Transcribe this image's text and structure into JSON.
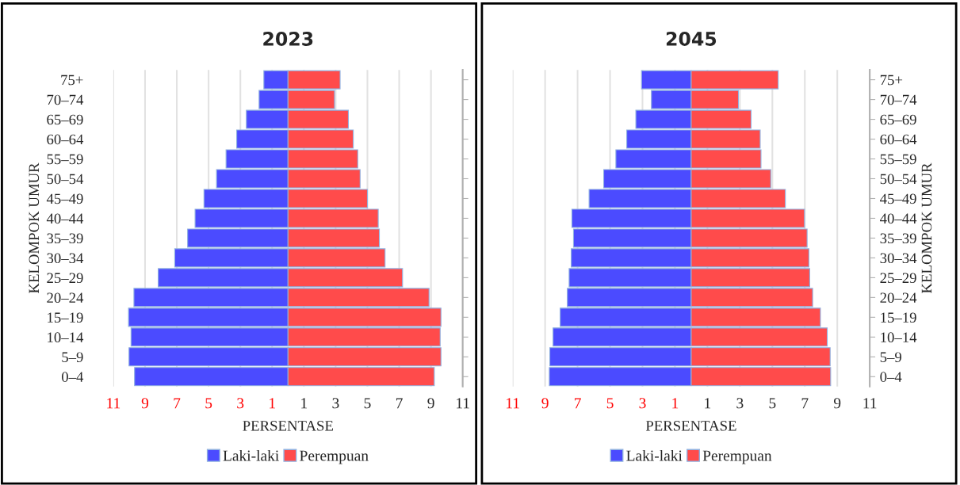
{
  "chart_data": [
    {
      "type": "bar",
      "stacked": true,
      "title": "2023",
      "xlabel": "PERSENTASE",
      "ylabel": "KELOMPOK UMUR",
      "orientation": "horizontal",
      "categories": [
        "75+",
        "70–74",
        "65–69",
        "60–64",
        "55–59",
        "50–54",
        "45–49",
        "40–44",
        "35–39",
        "30–34",
        "25–29",
        "20–24",
        "15–19",
        "10–14",
        "5–9",
        "0–4"
      ],
      "series": [
        {
          "name": "Laki-laki",
          "color": "#4b4bff",
          "values": [
            -1.52,
            -1.82,
            -2.62,
            -3.23,
            -3.9,
            -4.5,
            -5.29,
            -5.85,
            -6.32,
            -7.13,
            -8.17,
            -9.7,
            -10.04,
            -9.88,
            -10.01,
            -9.66
          ]
        },
        {
          "name": "Perempuan",
          "color": "#ff4b4b",
          "values": [
            3.28,
            2.93,
            3.8,
            4.11,
            4.39,
            4.54,
            5.0,
            5.68,
            5.75,
            6.11,
            7.21,
            8.88,
            9.63,
            9.58,
            9.63,
            9.21
          ]
        }
      ],
      "xlim": [
        -11,
        11
      ],
      "xticks": [
        {
          "value": -11,
          "label": "11"
        },
        {
          "value": -9,
          "label": "9"
        },
        {
          "value": -7,
          "label": "7"
        },
        {
          "value": -5,
          "label": "5"
        },
        {
          "value": -3,
          "label": "3"
        },
        {
          "value": -1,
          "label": "1"
        },
        1,
        3,
        5,
        7,
        9,
        11
      ],
      "grid": "x",
      "legend": "bottom"
    },
    {
      "type": "bar",
      "stacked": true,
      "title": "2045",
      "xlabel": "PERSENTASE",
      "ylabel": "KELOMPOK UMUR",
      "orientation": "horizontal",
      "categories": [
        "75+",
        "70–74",
        "65–69",
        "60–64",
        "55–59",
        "50–54",
        "45–49",
        "40–44",
        "35–39",
        "30–34",
        "25–29",
        "20–24",
        "15–19",
        "10–14",
        "5–9",
        "0–4"
      ],
      "series": [
        {
          "name": "Laki-laki",
          "color": "#4b4bff",
          "values": [
            -3.06,
            -2.45,
            -3.41,
            -3.97,
            -4.64,
            -5.39,
            -6.29,
            -7.35,
            -7.25,
            -7.39,
            -7.52,
            -7.63,
            -8.07,
            -8.51,
            -8.71,
            -8.74
          ]
        },
        {
          "name": "Perempuan",
          "color": "#ff4b4b",
          "values": [
            5.36,
            2.91,
            3.69,
            4.25,
            4.3,
            4.9,
            5.8,
            6.98,
            7.14,
            7.25,
            7.3,
            7.48,
            7.96,
            8.38,
            8.56,
            8.59
          ]
        }
      ],
      "xlim": [
        -11,
        11
      ],
      "xticks": [
        {
          "value": -11,
          "label": "11"
        },
        {
          "value": -9,
          "label": "9"
        },
        {
          "value": -7,
          "label": "7"
        },
        {
          "value": -5,
          "label": "5"
        },
        {
          "value": -3,
          "label": "3"
        },
        {
          "value": -1,
          "label": "1"
        },
        1,
        3,
        5,
        7,
        9,
        11
      ],
      "grid": "x",
      "legend": "bottom"
    }
  ]
}
